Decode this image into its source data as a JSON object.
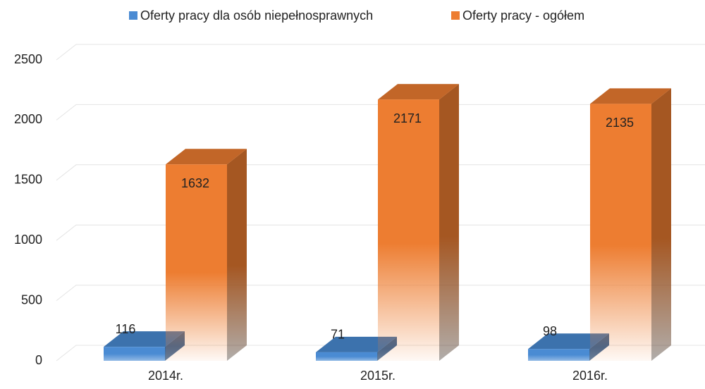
{
  "chart_data": {
    "type": "bar3d",
    "categories": [
      "2014r.",
      "2015r.",
      "2016r."
    ],
    "series": [
      {
        "name": "Oferty pracy dla osób niepełnosprawnych",
        "color": "#4a8bd3",
        "values": [
          116,
          71,
          98
        ]
      },
      {
        "name": "Oferty pracy - ogółem",
        "color": "#ed7d31",
        "values": [
          1632,
          2171,
          2135
        ]
      }
    ],
    "ylim": [
      0,
      2500
    ],
    "yticks": [
      0,
      500,
      1000,
      1500,
      2000,
      2500
    ],
    "grid": true,
    "legend": "top"
  }
}
